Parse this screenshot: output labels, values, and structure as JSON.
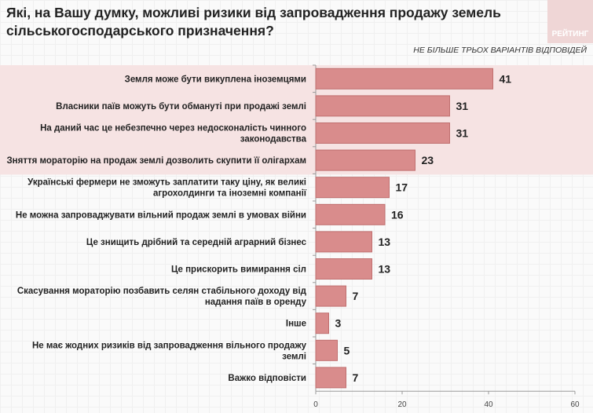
{
  "title": "Які, на Вашу думку, можливі ризики від запровадження продажу земель сільськогосподарського призначення?",
  "logo_text": "РЕЙТИНГ",
  "note": "НЕ БІЛЬШЕ ТРЬОХ ВАРІАНТІВ ВІДПОВІДЕЙ",
  "colors": {
    "bar": "#d98c8c",
    "bar_border": "#c06f6f",
    "highlight": "#f6e3e3"
  },
  "chart_data": {
    "type": "bar",
    "orientation": "horizontal",
    "categories": [
      [
        "Земля може бути викуплена іноземцями"
      ],
      [
        "Власники паїв можуть бути обмануті при продажі землі"
      ],
      [
        "На даний час це небезпечно через недосконалість чинного",
        "законодавства"
      ],
      [
        "Зняття мораторію на продаж землі дозволить скупити її олігархам"
      ],
      [
        "Українські фермери не зможуть заплатити таку ціну, як великі",
        "агрохолдинги та іноземні компанії"
      ],
      [
        "Не можна запроваджувати вільний продаж землі в умовах війни"
      ],
      [
        "Це знищить дрібний та середній аграрний бізнес"
      ],
      [
        "Це прискорить вимирання сіл"
      ],
      [
        "Скасування мораторію позбавить селян стабільного доходу від",
        "надання паїв в оренду"
      ],
      [
        "Інше"
      ],
      [
        "Не має жодних ризиків від запровадження вільного продажу",
        "землі"
      ],
      [
        "Важко відповісти"
      ]
    ],
    "values": [
      41,
      31,
      31,
      23,
      17,
      16,
      13,
      13,
      7,
      3,
      5,
      7
    ],
    "highlighted_top": 4,
    "xlim": [
      0,
      60
    ],
    "xticks": [
      0,
      20,
      40,
      60
    ]
  }
}
